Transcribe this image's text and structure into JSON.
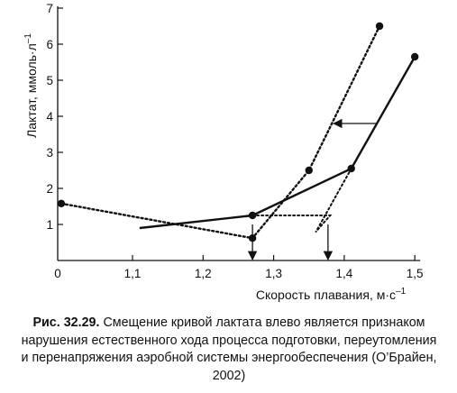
{
  "caption": {
    "label": "Рис. 32.29.",
    "text": "Смещение кривой лактата влево является признаком нарушения естественного хода процесса подготовки, переутомления и перенапряжения аэробной системы энергообеспечения (О’Брайен, 2002)"
  },
  "chart_data": {
    "type": "line",
    "title": "",
    "xlabel": "Скорость плавания, м·с",
    "xlabel_sup": "–1",
    "ylabel": "Лактат, ммоль·л",
    "ylabel_sup": "–1",
    "xlim": [
      0,
      1.5
    ],
    "ylim": [
      0,
      7
    ],
    "x_ticks": [
      "0",
      "1,1",
      "1,2",
      "1,3",
      "1,4",
      "1,5"
    ],
    "x_tick_values": [
      0,
      1.1,
      1.2,
      1.3,
      1.4,
      1.5
    ],
    "y_ticks": [
      "1",
      "2",
      "3",
      "4",
      "5",
      "6",
      "7"
    ],
    "y_tick_values": [
      1,
      2,
      3,
      4,
      5,
      6,
      7
    ],
    "x_axis_break": true,
    "series": [
      {
        "style": "solid",
        "points": [
          [
            1.11,
            0.9
          ],
          [
            1.27,
            1.25
          ],
          [
            1.41,
            2.55
          ],
          [
            1.5,
            5.65
          ]
        ],
        "markers": [
          [
            1.27,
            1.25
          ],
          [
            1.41,
            2.55
          ],
          [
            1.5,
            5.65
          ]
        ]
      },
      {
        "style": "dotted",
        "points": [
          [
            0.01,
            1.58
          ],
          [
            1.27,
            0.62
          ],
          [
            1.35,
            2.5
          ],
          [
            1.45,
            6.5
          ]
        ],
        "markers": [
          [
            0.01,
            1.58
          ],
          [
            1.27,
            0.62
          ],
          [
            1.35,
            2.5
          ],
          [
            1.45,
            6.5
          ]
        ]
      }
    ],
    "guides": [
      {
        "style": "dotted",
        "points": [
          [
            1.27,
            1.25
          ],
          [
            1.38,
            1.25
          ],
          [
            1.36,
            0.8
          ]
        ]
      },
      {
        "style": "dotted",
        "points": [
          [
            1.41,
            2.55
          ],
          [
            1.36,
            0.8
          ]
        ]
      }
    ],
    "annotations": [
      {
        "type": "arrow",
        "direction": "left",
        "from": [
          1.445,
          3.8
        ],
        "to": [
          1.385,
          3.8
        ]
      },
      {
        "type": "arrow",
        "direction": "down",
        "x": 1.27,
        "from_y": 1.0,
        "to_y": 0.0
      },
      {
        "type": "arrow",
        "direction": "down",
        "x": 1.377,
        "from_y": 1.0,
        "to_y": 0.0
      }
    ]
  }
}
